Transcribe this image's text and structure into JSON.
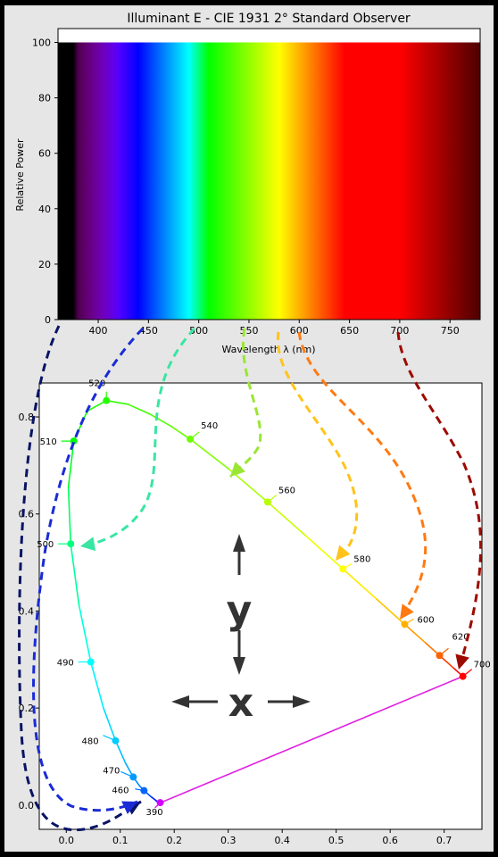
{
  "spectrum_chart": {
    "type": "bar",
    "title": "Illuminant E - CIE 1931 2° Standard Observer",
    "xlabel": "Wavelength λ (nm)",
    "ylabel": "Relative Power",
    "xlim": [
      360,
      780
    ],
    "ylim": [
      0,
      105
    ],
    "xticks": [
      "400",
      "450",
      "500",
      "550",
      "600",
      "650",
      "700",
      "750"
    ],
    "yticks": [
      "0",
      "20",
      "40",
      "60",
      "80",
      "100"
    ],
    "series": [
      {
        "x": [
          360,
          780
        ],
        "values": [
          100,
          100
        ]
      }
    ],
    "grid": false
  },
  "chart_data": {
    "type": "line",
    "xlim": [
      -0.05,
      0.77
    ],
    "ylim": [
      -0.05,
      0.87
    ],
    "xticks": [
      "0.0",
      "0.1",
      "0.2",
      "0.3",
      "0.4",
      "0.5",
      "0.6",
      "0.7"
    ],
    "yticks": [
      "0.0",
      "0.2",
      "0.4",
      "0.6",
      "0.8"
    ],
    "grid": false,
    "locus_points": [
      {
        "wl": 360,
        "x": 0.1756,
        "y": 0.0053
      },
      {
        "wl": 380,
        "x": 0.1741,
        "y": 0.005
      },
      {
        "wl": 400,
        "x": 0.1733,
        "y": 0.0048
      },
      {
        "wl": 420,
        "x": 0.1714,
        "y": 0.0051
      },
      {
        "wl": 430,
        "x": 0.1689,
        "y": 0.0069
      },
      {
        "wl": 440,
        "x": 0.1644,
        "y": 0.0109
      },
      {
        "wl": 450,
        "x": 0.1566,
        "y": 0.0177
      },
      {
        "wl": 460,
        "x": 0.144,
        "y": 0.0297
      },
      {
        "wl": 465,
        "x": 0.1355,
        "y": 0.0399
      },
      {
        "wl": 470,
        "x": 0.1241,
        "y": 0.0578
      },
      {
        "wl": 475,
        "x": 0.1096,
        "y": 0.0868
      },
      {
        "wl": 480,
        "x": 0.0913,
        "y": 0.1327
      },
      {
        "wl": 485,
        "x": 0.0687,
        "y": 0.2007
      },
      {
        "wl": 490,
        "x": 0.0454,
        "y": 0.295
      },
      {
        "wl": 495,
        "x": 0.0235,
        "y": 0.4127
      },
      {
        "wl": 500,
        "x": 0.0082,
        "y": 0.5384
      },
      {
        "wl": 505,
        "x": 0.0039,
        "y": 0.6548
      },
      {
        "wl": 510,
        "x": 0.0139,
        "y": 0.7502
      },
      {
        "wl": 515,
        "x": 0.0389,
        "y": 0.812
      },
      {
        "wl": 520,
        "x": 0.0743,
        "y": 0.8338
      },
      {
        "wl": 525,
        "x": 0.1142,
        "y": 0.8262
      },
      {
        "wl": 530,
        "x": 0.1547,
        "y": 0.8059
      },
      {
        "wl": 535,
        "x": 0.1929,
        "y": 0.7816
      },
      {
        "wl": 540,
        "x": 0.2296,
        "y": 0.7543
      },
      {
        "wl": 550,
        "x": 0.3016,
        "y": 0.6923
      },
      {
        "wl": 560,
        "x": 0.3731,
        "y": 0.6245
      },
      {
        "wl": 570,
        "x": 0.4441,
        "y": 0.5547
      },
      {
        "wl": 580,
        "x": 0.5125,
        "y": 0.4866
      },
      {
        "wl": 590,
        "x": 0.5752,
        "y": 0.4242
      },
      {
        "wl": 600,
        "x": 0.627,
        "y": 0.3725
      },
      {
        "wl": 610,
        "x": 0.6658,
        "y": 0.334
      },
      {
        "wl": 620,
        "x": 0.6915,
        "y": 0.3083
      },
      {
        "wl": 640,
        "x": 0.719,
        "y": 0.2809
      },
      {
        "wl": 660,
        "x": 0.73,
        "y": 0.27
      },
      {
        "wl": 680,
        "x": 0.7334,
        "y": 0.2666
      },
      {
        "wl": 700,
        "x": 0.7347,
        "y": 0.2653
      },
      {
        "wl": 780,
        "x": 0.7347,
        "y": 0.2653
      }
    ],
    "labeled_points": [
      {
        "label": "390",
        "x": 0.1741,
        "y": 0.005
      },
      {
        "label": "460",
        "x": 0.144,
        "y": 0.0297
      },
      {
        "label": "470",
        "x": 0.1241,
        "y": 0.0578
      },
      {
        "label": "480",
        "x": 0.0913,
        "y": 0.1327
      },
      {
        "label": "490",
        "x": 0.0454,
        "y": 0.295
      },
      {
        "label": "500",
        "x": 0.0082,
        "y": 0.5384
      },
      {
        "label": "510",
        "x": 0.0139,
        "y": 0.7502
      },
      {
        "label": "520",
        "x": 0.0743,
        "y": 0.8338
      },
      {
        "label": "540",
        "x": 0.2296,
        "y": 0.7543
      },
      {
        "label": "560",
        "x": 0.3731,
        "y": 0.6245
      },
      {
        "label": "580",
        "x": 0.5125,
        "y": 0.4866
      },
      {
        "label": "600",
        "x": 0.627,
        "y": 0.3725
      },
      {
        "label": "620",
        "x": 0.6915,
        "y": 0.3083
      },
      {
        "label": "700",
        "x": 0.7347,
        "y": 0.2653
      }
    ]
  },
  "axis_glyphs": {
    "y_label": "y",
    "x_label": "x"
  },
  "colors": {
    "arrow_dark_navy": "#0a1464",
    "arrow_blue": "#1a2bd6",
    "arrow_teal": "#38e6a2",
    "arrow_lime": "#9ae632",
    "arrow_yellow": "#ffc31a",
    "arrow_orange": "#ff7a12",
    "arrow_dark_red": "#9c0a00"
  }
}
